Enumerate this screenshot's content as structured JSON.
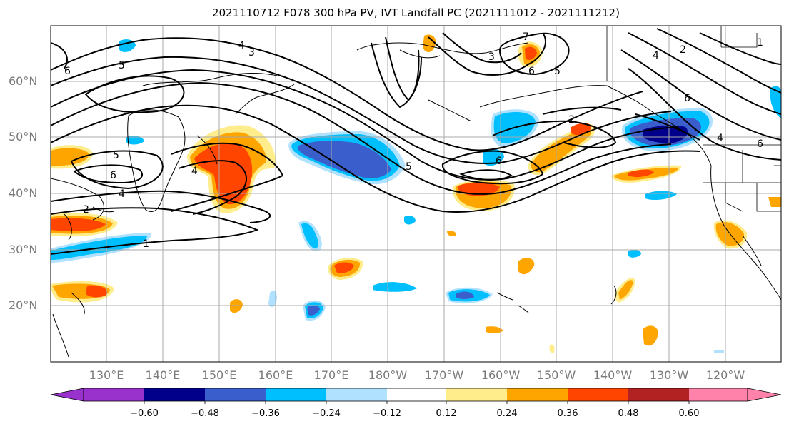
{
  "title": "2021110712 F078 300 hPa PV, IVT Landfall PC (2021111012 - 2021111212)",
  "lat_labels": [
    "60°N",
    "50°N",
    "40°N",
    "30°N",
    "20°N"
  ],
  "lon_labels": [
    "130°E",
    "140°E",
    "150°E",
    "160°E",
    "170°E",
    "180°W",
    "170°W",
    "160°W",
    "150°W",
    "140°W",
    "130°W",
    "120°W"
  ],
  "colorbar": {
    "ticks": [
      "−0.60",
      "−0.48",
      "−0.36",
      "−0.24",
      "−0.12",
      "0.12",
      "0.24",
      "0.36",
      "0.48",
      "0.60"
    ],
    "colors": [
      "#9932cc",
      "#00008b",
      "#3a5fcd",
      "#00bfff",
      "#b0e2ff",
      "#ffffff",
      "#ffec8b",
      "#ffa500",
      "#ff4500",
      "#b22222",
      "#ff82ab"
    ]
  },
  "contour_labels": [
    "6",
    "5",
    "4",
    "3",
    "7",
    "6",
    "5",
    "2",
    "6",
    "4",
    "3",
    "5",
    "6",
    "4",
    "2",
    "1",
    "6",
    "4",
    "1",
    "4",
    "6",
    "2",
    "5"
  ],
  "palette": {
    "light_blue": "#b0e2ff",
    "blue": "#00bfff",
    "mid_blue": "#3a5fcd",
    "navy": "#00008b",
    "yellow": "#ffec8b",
    "orange": "#ffa500",
    "red": "#ff4500"
  }
}
